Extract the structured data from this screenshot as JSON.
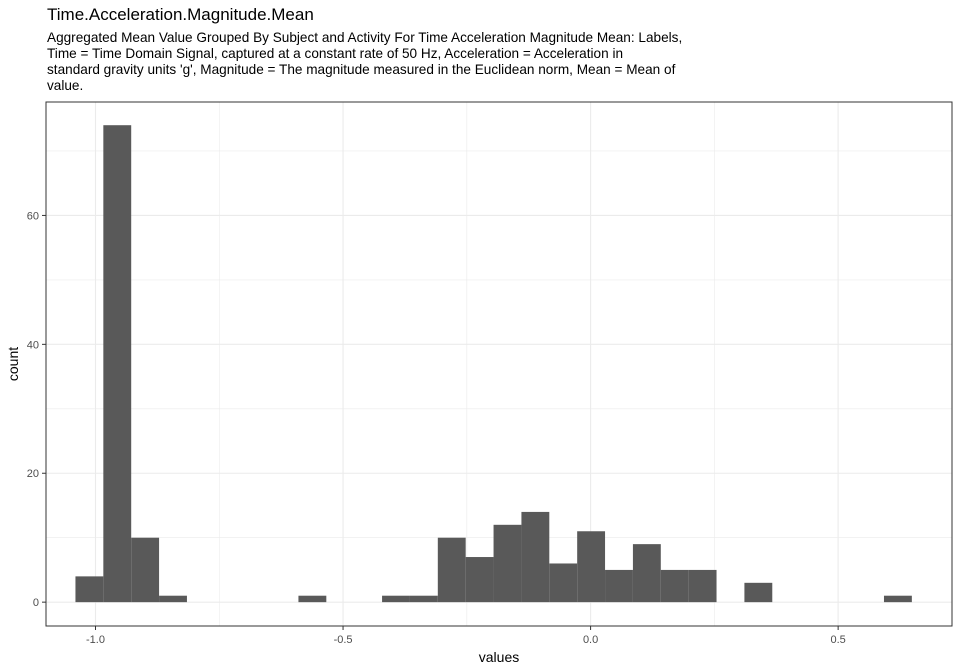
{
  "chart_data": {
    "type": "bar",
    "title": "Time.Acceleration.Magnitude.Mean",
    "subtitle_lines": [
      "Aggregated Mean Value Grouped By Subject and Activity For Time Acceleration Magnitude Mean: Labels,",
      "Time = Time Domain Signal, captured at a constant rate of 50 Hz, Acceleration = Acceleration in",
      "standard gravity units 'g', Magnitude = The magnitude measured in the Euclidean norm, Mean = Mean of",
      "value."
    ],
    "xlabel": "values",
    "ylabel": "count",
    "xlim": [
      -1.1,
      0.73
    ],
    "ylim": [
      -3.7,
      77.6
    ],
    "x_ticks": [
      -1.0,
      -0.5,
      0.0,
      0.5
    ],
    "x_tick_labels": [
      "-1.0",
      "-0.5",
      "0.0",
      "0.5"
    ],
    "y_ticks": [
      0,
      20,
      40,
      60
    ],
    "y_tick_labels": [
      "0",
      "20",
      "40",
      "60"
    ],
    "bin_width": 0.0563,
    "bins": [
      {
        "x0": -1.0405,
        "x1": -0.9842,
        "count": 4
      },
      {
        "x0": -0.9842,
        "x1": -0.9279,
        "count": 74
      },
      {
        "x0": -0.9279,
        "x1": -0.8716,
        "count": 10
      },
      {
        "x0": -0.8716,
        "x1": -0.8153,
        "count": 1
      },
      {
        "x0": -0.5901,
        "x1": -0.5338,
        "count": 1
      },
      {
        "x0": -0.4212,
        "x1": -0.3649,
        "count": 1
      },
      {
        "x0": -0.3649,
        "x1": -0.3086,
        "count": 1
      },
      {
        "x0": -0.3086,
        "x1": -0.2523,
        "count": 10
      },
      {
        "x0": -0.2523,
        "x1": -0.196,
        "count": 7
      },
      {
        "x0": -0.196,
        "x1": -0.1397,
        "count": 12
      },
      {
        "x0": -0.1397,
        "x1": -0.0834,
        "count": 14
      },
      {
        "x0": -0.0834,
        "x1": -0.0271,
        "count": 6
      },
      {
        "x0": -0.0271,
        "x1": 0.0292,
        "count": 11
      },
      {
        "x0": 0.0292,
        "x1": 0.0855,
        "count": 5
      },
      {
        "x0": 0.0855,
        "x1": 0.1418,
        "count": 9
      },
      {
        "x0": 0.1418,
        "x1": 0.1981,
        "count": 5
      },
      {
        "x0": 0.1981,
        "x1": 0.2544,
        "count": 5
      },
      {
        "x0": 0.3107,
        "x1": 0.367,
        "count": 3
      },
      {
        "x0": 0.5926,
        "x1": 0.6489,
        "count": 1
      }
    ],
    "bar_color": "#595959",
    "grid": true,
    "grid_color": "#ebebeb",
    "panel_border_color": "#333333",
    "legend": "none"
  }
}
